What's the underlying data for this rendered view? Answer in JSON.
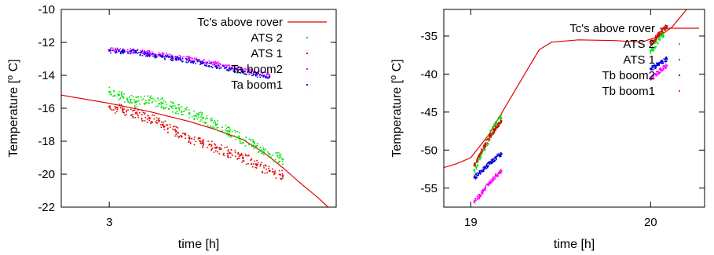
{
  "chart_data": [
    {
      "type": "scatter",
      "xlabel": "time [h]",
      "ylabel": "Temperature [",
      "ylabel_sup": "o",
      "ylabel_tail": " C]",
      "xlim": [
        2.82,
        3.85
      ],
      "ylim": [
        -22,
        -10
      ],
      "xticks": [
        3
      ],
      "yticks": [
        -22,
        -20,
        -18,
        -16,
        -14,
        -12,
        -10
      ],
      "legend_position": "top-right",
      "grid": false,
      "series": [
        {
          "name": "Tc's above rover",
          "kind": "line",
          "color": "#e00000",
          "x": [
            2.82,
            3.0,
            3.15,
            3.3,
            3.4,
            3.5,
            3.58,
            3.65,
            3.72,
            3.78,
            3.82
          ],
          "y": [
            -15.2,
            -15.7,
            -16.2,
            -16.8,
            -17.3,
            -17.9,
            -18.7,
            -19.6,
            -20.6,
            -21.4,
            -22.0
          ]
        },
        {
          "name": "ATS 2",
          "kind": "points",
          "color": "#00e000",
          "x": [
            3.0,
            3.05,
            3.1,
            3.15,
            3.2,
            3.25,
            3.3,
            3.35,
            3.4,
            3.45,
            3.5,
            3.55,
            3.6,
            3.65
          ],
          "y": [
            -15.0,
            -15.3,
            -15.6,
            -15.5,
            -15.7,
            -16.0,
            -16.3,
            -16.6,
            -17.0,
            -17.4,
            -17.9,
            -18.3,
            -18.8,
            -19.1
          ]
        },
        {
          "name": "ATS 1",
          "kind": "points",
          "color": "#e00000",
          "x": [
            3.0,
            3.05,
            3.1,
            3.15,
            3.2,
            3.25,
            3.3,
            3.35,
            3.4,
            3.45,
            3.5,
            3.55,
            3.6,
            3.65
          ],
          "y": [
            -15.9,
            -16.1,
            -16.3,
            -16.6,
            -17.0,
            -17.4,
            -17.8,
            -18.1,
            -18.4,
            -18.7,
            -19.0,
            -19.4,
            -19.8,
            -20.1
          ]
        },
        {
          "name": "Ta boom2",
          "kind": "points",
          "color": "#ff00ff",
          "x": [
            3.0,
            3.05,
            3.1,
            3.15,
            3.2,
            3.25,
            3.3,
            3.35,
            3.4,
            3.45,
            3.5,
            3.55,
            3.6
          ],
          "y": [
            -12.45,
            -12.5,
            -12.55,
            -12.65,
            -12.78,
            -12.9,
            -13.0,
            -13.15,
            -13.3,
            -13.5,
            -13.65,
            -13.85,
            -14.0
          ]
        },
        {
          "name": "Ta boom1",
          "kind": "points",
          "color": "#0000e0",
          "x": [
            3.0,
            3.05,
            3.1,
            3.15,
            3.2,
            3.25,
            3.3,
            3.35,
            3.4,
            3.45,
            3.5,
            3.55,
            3.6
          ],
          "y": [
            -12.5,
            -12.55,
            -12.6,
            -12.75,
            -12.88,
            -13.0,
            -13.1,
            -13.25,
            -13.45,
            -13.6,
            -13.8,
            -13.95,
            -14.1
          ]
        }
      ]
    },
    {
      "type": "scatter",
      "xlabel": "time [h]",
      "ylabel": "Temperature [",
      "ylabel_sup": "o",
      "ylabel_tail": " C]",
      "xlim": [
        18.85,
        20.3
      ],
      "ylim": [
        -57.5,
        -31.5
      ],
      "xticks": [
        19,
        20
      ],
      "yticks": [
        -55,
        -50,
        -45,
        -40,
        -35
      ],
      "legend_position": "top-right",
      "grid": false,
      "series": [
        {
          "name": "Tc's above rover",
          "kind": "line",
          "color": "#e00000",
          "x": [
            18.85,
            18.92,
            19.0,
            19.1,
            19.2,
            19.3,
            19.38,
            19.45,
            19.6,
            19.8,
            19.95,
            20.05,
            20.12,
            20.2
          ],
          "y": [
            -52.3,
            -51.8,
            -51.0,
            -48.0,
            -44.0,
            -40.0,
            -36.8,
            -35.8,
            -35.5,
            -35.6,
            -35.8,
            -35.0,
            -33.8,
            -31.5
          ]
        },
        {
          "name": "ATS 2",
          "kind": "points",
          "color": "#00e000",
          "x": [
            19.02,
            19.05,
            19.08,
            19.11,
            19.14,
            19.17,
            20.0,
            20.03,
            20.06,
            20.09
          ],
          "y": [
            -52.6,
            -51.0,
            -49.5,
            -48.0,
            -46.8,
            -45.8,
            -37.0,
            -35.8,
            -34.8,
            -34.0
          ]
        },
        {
          "name": "ATS 1",
          "kind": "points",
          "color": "#e00000",
          "x": [
            19.02,
            19.05,
            19.08,
            19.11,
            19.14,
            19.17,
            20.0,
            20.03,
            20.06,
            20.09
          ],
          "y": [
            -52.0,
            -50.6,
            -49.3,
            -48.1,
            -47.1,
            -46.2,
            -36.0,
            -35.2,
            -34.4,
            -33.7
          ]
        },
        {
          "name": "Tb boom2",
          "kind": "points",
          "color": "#0000e0",
          "x": [
            19.02,
            19.05,
            19.08,
            19.11,
            19.14,
            19.17,
            20.0,
            20.03,
            20.06,
            20.09
          ],
          "y": [
            -53.6,
            -53.0,
            -52.3,
            -51.6,
            -51.0,
            -50.5,
            -39.3,
            -38.9,
            -38.4,
            -38.0
          ]
        },
        {
          "name": "Tb boom1",
          "kind": "points",
          "color": "#ff00ff",
          "x": [
            19.02,
            19.05,
            19.08,
            19.11,
            19.14,
            19.17,
            20.0,
            20.03,
            20.06,
            20.09
          ],
          "y": [
            -56.8,
            -56.0,
            -55.0,
            -54.2,
            -53.4,
            -52.8,
            -40.7,
            -40.0,
            -39.4,
            -38.9
          ]
        }
      ]
    }
  ]
}
